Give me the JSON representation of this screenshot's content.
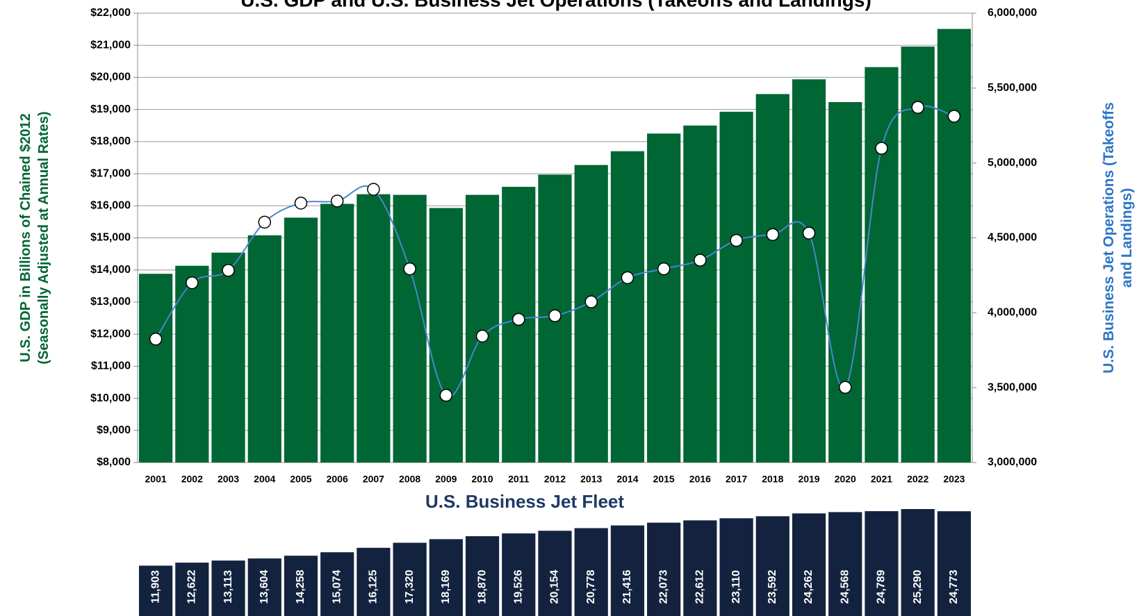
{
  "chart_data": [
    {
      "type": "bar",
      "title": "U.S. GDP and U.S. Business Jet Operations (Takeoffs and Landings)",
      "y_label": [
        "U.S. GDP in Billions of Chained $2012",
        "(Seasonally Adjusted at Annual Rates)"
      ],
      "y2_label": [
        "U.S. Business Jet Operations (Takeoffs",
        "and Landings)"
      ],
      "categories": [
        "2001",
        "2002",
        "2003",
        "2004",
        "2005",
        "2006",
        "2007",
        "2008",
        "2009",
        "2010",
        "2011",
        "2012",
        "2013",
        "2014",
        "2015",
        "2016",
        "2017",
        "2018",
        "2019",
        "2020",
        "2021",
        "2022",
        "2023"
      ],
      "series": [
        {
          "type": "bar",
          "color": "#006633",
          "values": [
            13880,
            14130,
            14540,
            15080,
            15630,
            16060,
            16360,
            16340,
            15930,
            16340,
            16590,
            16970,
            17270,
            17700,
            18250,
            18500,
            18930,
            19480,
            19940,
            19230,
            20320,
            20960,
            21510
          ]
        },
        {
          "type": "line",
          "axis": "y2",
          "color": "#4a86d0",
          "values": [
            3824000,
            4200000,
            4283000,
            4605000,
            4732000,
            4746000,
            4824000,
            4293000,
            3449000,
            3844000,
            3956000,
            3980000,
            4073000,
            4234000,
            4293000,
            4351000,
            4483000,
            4522000,
            4532000,
            3502000,
            5098000,
            5371000,
            5312000
          ]
        }
      ],
      "ylim": [
        8000,
        22000
      ],
      "yticks": [
        {
          "value": 8000,
          "label": "$8,000"
        },
        {
          "value": 9000,
          "label": "$9,000"
        },
        {
          "value": 10000,
          "label": "$10,000"
        },
        {
          "value": 11000,
          "label": "$11,000"
        },
        {
          "value": 12000,
          "label": "$12,000"
        },
        {
          "value": 13000,
          "label": "$13,000"
        },
        {
          "value": 14000,
          "label": "$14,000"
        },
        {
          "value": 15000,
          "label": "$15,000"
        },
        {
          "value": 16000,
          "label": "$16,000"
        },
        {
          "value": 17000,
          "label": "$17,000"
        },
        {
          "value": 18000,
          "label": "$18,000"
        },
        {
          "value": 19000,
          "label": "$19,000"
        },
        {
          "value": 20000,
          "label": "$20,000"
        },
        {
          "value": 21000,
          "label": "$21,000"
        },
        {
          "value": 22000,
          "label": "$22,000"
        }
      ],
      "y2lim": [
        3000000,
        6000000
      ],
      "y2ticks": [
        {
          "value": 3000000,
          "label": "3,000,000"
        },
        {
          "value": 3500000,
          "label": "3,500,000"
        },
        {
          "value": 4000000,
          "label": "4,000,000"
        },
        {
          "value": 4500000,
          "label": "4,500,000"
        },
        {
          "value": 5000000,
          "label": "5,000,000"
        },
        {
          "value": 5500000,
          "label": "5,500,000"
        },
        {
          "value": 6000000,
          "label": "6,000,000"
        }
      ],
      "grid": true
    },
    {
      "type": "bar",
      "title": "U.S. Business Jet Fleet",
      "color": "#13233f",
      "values": [
        11903,
        12622,
        13113,
        13604,
        14258,
        15074,
        16125,
        17320,
        18169,
        18870,
        19526,
        20154,
        20778,
        21416,
        22073,
        22612,
        23110,
        23592,
        24262,
        24568,
        24789,
        25290,
        24773
      ],
      "value_labels": [
        "11,903",
        "12,622",
        "13,113",
        "13,604",
        "14,258",
        "15,074",
        "16,125",
        "17,320",
        "18,169",
        "18,870",
        "19,526",
        "20,154",
        "20,778",
        "21,416",
        "22,073",
        "22,612",
        "23,110",
        "23,592",
        "24,262",
        "24,568",
        "24,789",
        "25,290",
        "24,773"
      ]
    }
  ]
}
